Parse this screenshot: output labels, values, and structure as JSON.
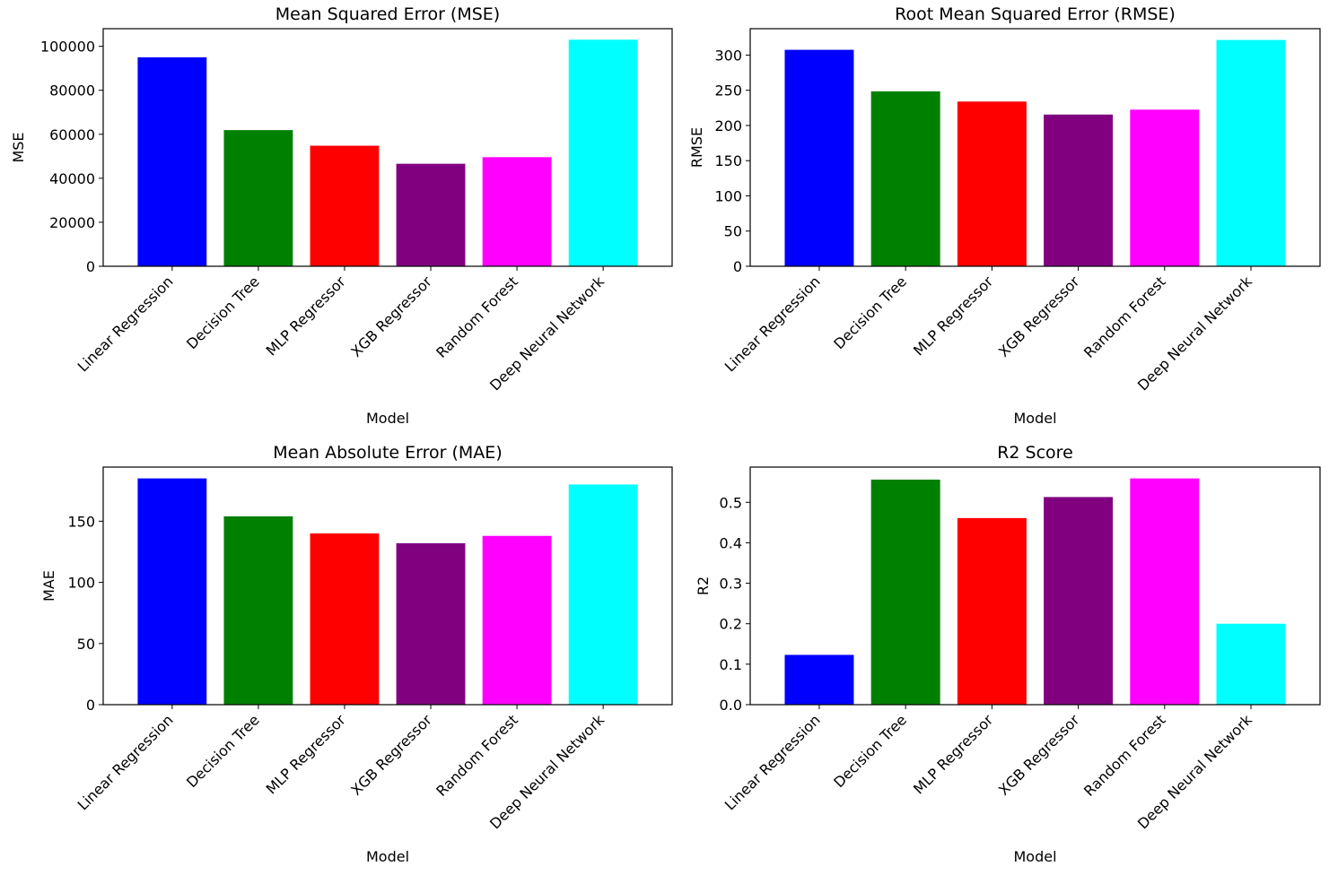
{
  "chart_data": [
    {
      "type": "bar",
      "title": "Mean Squared Error (MSE)",
      "xlabel": "Model",
      "ylabel": "MSE",
      "categories": [
        "Linear Regression",
        "Decision Tree",
        "MLP Regressor",
        "XGB Regressor",
        "Random Forest",
        "Deep Neural Network"
      ],
      "values": [
        95000,
        61900,
        54800,
        46600,
        49600,
        103000
      ],
      "colors": [
        "#0000ff",
        "#008000",
        "#ff0000",
        "#800080",
        "#ff00ff",
        "#00ffff"
      ],
      "ylim": [
        0,
        108000
      ],
      "yticks": [
        0,
        20000,
        40000,
        60000,
        80000,
        100000
      ],
      "grid": false,
      "legend": "none"
    },
    {
      "type": "bar",
      "title": "Root Mean Squared Error (RMSE)",
      "xlabel": "Model",
      "ylabel": "RMSE",
      "categories": [
        "Linear Regression",
        "Decision Tree",
        "MLP Regressor",
        "XGB Regressor",
        "Random Forest",
        "Deep Neural Network"
      ],
      "values": [
        307.5,
        248.5,
        234,
        215.5,
        222.5,
        321.5
      ],
      "colors": [
        "#0000ff",
        "#008000",
        "#ff0000",
        "#800080",
        "#ff00ff",
        "#00ffff"
      ],
      "ylim": [
        0,
        337.5
      ],
      "yticks": [
        0,
        50,
        100,
        150,
        200,
        250,
        300
      ],
      "grid": false,
      "legend": "none"
    },
    {
      "type": "bar",
      "title": "Mean Absolute Error (MAE)",
      "xlabel": "Model",
      "ylabel": "MAE",
      "categories": [
        "Linear Regression",
        "Decision Tree",
        "MLP Regressor",
        "XGB Regressor",
        "Random Forest",
        "Deep Neural Network"
      ],
      "values": [
        185,
        154,
        140,
        132,
        138,
        180
      ],
      "colors": [
        "#0000ff",
        "#008000",
        "#ff0000",
        "#800080",
        "#ff00ff",
        "#00ffff"
      ],
      "ylim": [
        0,
        194.25
      ],
      "yticks": [
        0,
        50,
        100,
        150
      ],
      "grid": false,
      "legend": "none"
    },
    {
      "type": "bar",
      "title": "R2 Score",
      "xlabel": "Model",
      "ylabel": "R2",
      "categories": [
        "Linear Regression",
        "Decision Tree",
        "MLP Regressor",
        "XGB Regressor",
        "Random Forest",
        "Deep Neural Network"
      ],
      "values": [
        0.123,
        0.556,
        0.461,
        0.513,
        0.559,
        0.2
      ],
      "colors": [
        "#0000ff",
        "#008000",
        "#ff0000",
        "#800080",
        "#ff00ff",
        "#00ffff"
      ],
      "ylim": [
        0,
        0.587
      ],
      "yticks": [
        0.0,
        0.1,
        0.2,
        0.3,
        0.4,
        0.5
      ],
      "ytick_labels": [
        "0.0",
        "0.1",
        "0.2",
        "0.3",
        "0.4",
        "0.5"
      ],
      "grid": false,
      "legend": "none"
    }
  ]
}
